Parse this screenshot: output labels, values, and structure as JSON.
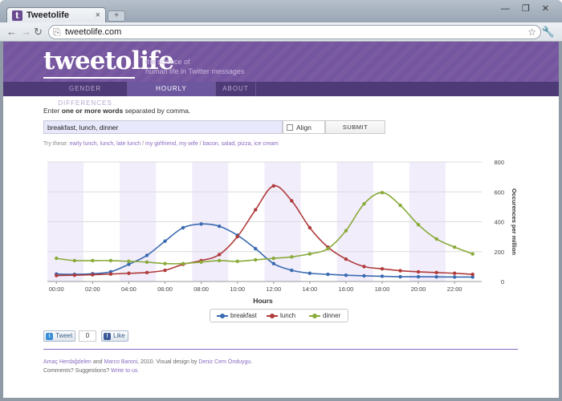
{
  "browser": {
    "tab_title": "Tweetolife",
    "tab_favicon": "t",
    "tab_close": "×",
    "new_tab": "+",
    "window_controls": "— ❐ ✕",
    "url": "tweetolife.com"
  },
  "site": {
    "logo": "tweetolife",
    "tagline_1": "the science of",
    "tagline_2": "human life in Twitter messages",
    "nav": [
      {
        "label": "GENDER DIFFERENCES"
      },
      {
        "label": "HOURLY DIFFERENCES"
      },
      {
        "label": "ABOUT"
      }
    ]
  },
  "form": {
    "intro_prefix": "Enter ",
    "intro_bold": "one or more words",
    "intro_suffix": " separated by comma.",
    "query_value": "breakfast, lunch, dinner",
    "align_label": "Align",
    "submit_label": "SUBMIT",
    "try_prefix": "Try these: ",
    "try_1": "early lunch, lunch, late lunch",
    "sep_1": " / ",
    "try_2": "my girlfriend, my wife",
    "sep_2": " / ",
    "try_3": "bacon, salad, pizza, ice cream"
  },
  "chart_data": {
    "type": "line",
    "xlabel": "Hours",
    "ylabel": "Occurences per million",
    "ylim": [
      0,
      800
    ],
    "yticks": [
      "0",
      "200",
      "400",
      "600",
      "800"
    ],
    "xtick_labels": [
      "00:00",
      "02:00",
      "04:00",
      "06:00",
      "08:00",
      "10:00",
      "12:00",
      "14:00",
      "16:00",
      "18:00",
      "20:00",
      "22:00"
    ],
    "x": [
      0,
      1,
      2,
      3,
      4,
      5,
      6,
      7,
      8,
      9,
      10,
      11,
      12,
      13,
      14,
      15,
      16,
      17,
      18,
      19,
      20,
      21,
      22,
      23
    ],
    "grid": true,
    "legend_position": "bottom",
    "series": [
      {
        "name": "breakfast",
        "color": "#3a6ab0",
        "values": [
          50,
          48,
          52,
          65,
          115,
          175,
          270,
          360,
          385,
          370,
          310,
          220,
          120,
          75,
          55,
          48,
          42,
          38,
          35,
          32,
          32,
          31,
          30,
          30
        ]
      },
      {
        "name": "lunch",
        "color": "#b03a3a",
        "values": [
          40,
          42,
          45,
          50,
          55,
          60,
          75,
          115,
          140,
          180,
          300,
          480,
          640,
          540,
          360,
          230,
          150,
          100,
          85,
          72,
          65,
          60,
          55,
          48
        ]
      },
      {
        "name": "dinner",
        "color": "#8aaa3a",
        "values": [
          155,
          140,
          140,
          140,
          135,
          130,
          120,
          120,
          130,
          140,
          135,
          145,
          155,
          165,
          185,
          220,
          340,
          520,
          595,
          510,
          380,
          285,
          230,
          185
        ]
      }
    ]
  },
  "social": {
    "tweet_label": "Tweet",
    "tweet_count": "0",
    "like_label": "Like"
  },
  "footer": {
    "author_1": "Amaç Herdağdelen",
    "and": " and ",
    "author_2": "Marco Baroni",
    "mid": ", 2010. Visual design by ",
    "designer": "Deniz Cem Önduygu",
    "period": ".",
    "line2_prefix": "Comments? Suggestions? ",
    "line2_link": "Write to us."
  }
}
